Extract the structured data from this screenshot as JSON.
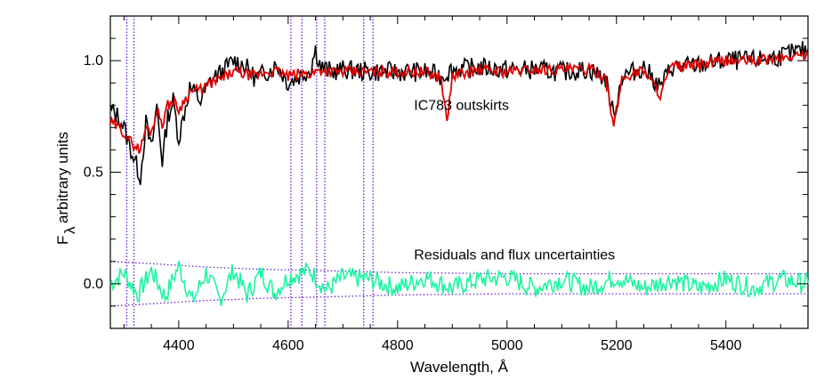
{
  "chart_data": {
    "type": "line",
    "title": "",
    "xlabel": "Wavelength, Å",
    "ylabel_main": "F",
    "ylabel_sub": "λ",
    "ylabel_rest": "arbitrary units",
    "xlim": [
      4275,
      5550
    ],
    "ylim": [
      -0.2,
      1.2
    ],
    "x_ticks": [
      4400,
      4600,
      4800,
      5000,
      5200,
      5400
    ],
    "x_tick_labels": [
      "4400",
      "4600",
      "4800",
      "5000",
      "5200",
      "5400"
    ],
    "y_ticks": [
      0.0,
      0.5,
      1.0
    ],
    "y_tick_labels": [
      "0.0",
      "0.5",
      "1.0"
    ],
    "annotations": [
      {
        "text": "IC783 outskirts",
        "x": 4830,
        "y": 0.8
      },
      {
        "text": "Residuals and flux uncertainties",
        "x": 4830,
        "y": 0.13
      }
    ],
    "masked_regions": [
      [
        4305,
        4318
      ],
      [
        4605,
        4625
      ],
      [
        4652,
        4667
      ],
      [
        4738,
        4755
      ]
    ],
    "colors": {
      "observed": "#000000",
      "model": "#e00000",
      "residuals": "#1ef5a0",
      "uncertainty": "#6a1fd0",
      "mask": "#6a1fd0"
    },
    "series": [
      {
        "name": "observed",
        "x": [
          4275,
          4290,
          4300,
          4310,
          4320,
          4330,
          4340,
          4350,
          4360,
          4370,
          4380,
          4390,
          4400,
          4420,
          4440,
          4460,
          4480,
          4500,
          4520,
          4540,
          4560,
          4580,
          4600,
          4620,
          4640,
          4650,
          4660,
          4680,
          4700,
          4750,
          4800,
          4850,
          4880,
          4900,
          4950,
          5000,
          5050,
          5100,
          5150,
          5180,
          5195,
          5210,
          5250,
          5280,
          5300,
          5350,
          5400,
          5450,
          5500,
          5550
        ],
        "y": [
          0.78,
          0.75,
          0.7,
          0.62,
          0.55,
          0.48,
          0.72,
          0.6,
          0.8,
          0.55,
          0.75,
          0.82,
          0.65,
          0.88,
          0.82,
          0.92,
          0.95,
          1.0,
          0.98,
          0.92,
          0.95,
          0.98,
          0.9,
          0.93,
          0.96,
          1.05,
          0.97,
          0.95,
          0.96,
          0.95,
          0.95,
          0.95,
          0.93,
          0.96,
          0.97,
          0.96,
          0.96,
          0.95,
          0.96,
          0.92,
          0.75,
          0.93,
          0.97,
          0.88,
          0.97,
          0.98,
          1.0,
          1.0,
          1.02,
          1.05
        ]
      },
      {
        "name": "model",
        "x": [
          4275,
          4290,
          4300,
          4310,
          4320,
          4330,
          4340,
          4350,
          4360,
          4370,
          4380,
          4390,
          4400,
          4420,
          4440,
          4460,
          4480,
          4500,
          4520,
          4540,
          4560,
          4580,
          4600,
          4620,
          4640,
          4660,
          4680,
          4700,
          4750,
          4800,
          4850,
          4880,
          4890,
          4900,
          4950,
          5000,
          5050,
          5100,
          5150,
          5180,
          5195,
          5210,
          5250,
          5280,
          5300,
          5350,
          5400,
          5450,
          5500,
          5550
        ],
        "y": [
          0.72,
          0.7,
          0.68,
          0.64,
          0.62,
          0.6,
          0.7,
          0.68,
          0.78,
          0.72,
          0.8,
          0.82,
          0.78,
          0.86,
          0.87,
          0.9,
          0.92,
          0.95,
          0.94,
          0.93,
          0.95,
          0.95,
          0.93,
          0.94,
          0.94,
          0.96,
          0.95,
          0.95,
          0.95,
          0.95,
          0.95,
          0.92,
          0.72,
          0.93,
          0.96,
          0.95,
          0.96,
          0.96,
          0.96,
          0.93,
          0.7,
          0.92,
          0.96,
          0.85,
          0.97,
          0.98,
          1.0,
          1.0,
          1.01,
          1.03
        ]
      },
      {
        "name": "residuals",
        "x": [
          4275,
          4300,
          4325,
          4350,
          4375,
          4400,
          4425,
          4450,
          4475,
          4500,
          4525,
          4550,
          4575,
          4600,
          4640,
          4670,
          4700,
          4750,
          4800,
          4850,
          4900,
          4950,
          5000,
          5050,
          5100,
          5150,
          5200,
          5250,
          5300,
          5350,
          5400,
          5450,
          5500,
          5550
        ],
        "y": [
          0.0,
          0.05,
          -0.05,
          0.06,
          -0.06,
          0.08,
          -0.08,
          0.05,
          -0.07,
          0.06,
          -0.05,
          0.05,
          -0.04,
          0.03,
          0.06,
          -0.03,
          0.03,
          0.02,
          -0.02,
          0.03,
          -0.02,
          0.02,
          0.03,
          -0.02,
          0.02,
          -0.02,
          0.03,
          -0.02,
          0.02,
          -0.02,
          0.02,
          -0.02,
          0.02,
          0.0
        ]
      },
      {
        "name": "uncertainty_upper",
        "x": [
          4275,
          4350,
          4450,
          4550,
          4650,
          4800,
          5000,
          5200,
          5400,
          5550
        ],
        "y": [
          0.1,
          0.09,
          0.075,
          0.065,
          0.06,
          0.05,
          0.045,
          0.045,
          0.045,
          0.045
        ]
      },
      {
        "name": "uncertainty_lower",
        "x": [
          4275,
          4350,
          4450,
          4550,
          4650,
          4800,
          5000,
          5200,
          5400,
          5550
        ],
        "y": [
          -0.1,
          -0.09,
          -0.075,
          -0.065,
          -0.06,
          -0.05,
          -0.045,
          -0.045,
          -0.045,
          -0.045
        ]
      }
    ]
  }
}
